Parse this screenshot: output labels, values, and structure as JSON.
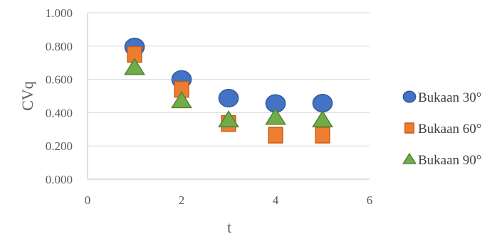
{
  "chart_data": {
    "type": "scatter",
    "title": "",
    "xlabel": "t",
    "ylabel": "CVq",
    "xlim": [
      0,
      6
    ],
    "ylim": [
      0,
      1
    ],
    "x_ticks": [
      "0",
      "2",
      "4",
      "6"
    ],
    "y_ticks": [
      "0.000",
      "0.200",
      "0.400",
      "0.600",
      "0.800",
      "1.000"
    ],
    "grid": true,
    "legend_position": "right",
    "series": [
      {
        "name": "Bukaan 30°",
        "marker": "circle",
        "color": "#4472C4",
        "points": [
          {
            "x": 1,
            "y": 0.795
          },
          {
            "x": 2,
            "y": 0.6
          },
          {
            "x": 3,
            "y": 0.487
          },
          {
            "x": 4,
            "y": 0.455
          },
          {
            "x": 5,
            "y": 0.457
          }
        ]
      },
      {
        "name": "Bukaan 60°",
        "marker": "square",
        "color": "#ED7D31",
        "points": [
          {
            "x": 1,
            "y": 0.75
          },
          {
            "x": 2,
            "y": 0.54
          },
          {
            "x": 3,
            "y": 0.335
          },
          {
            "x": 4,
            "y": 0.265
          },
          {
            "x": 5,
            "y": 0.265
          }
        ]
      },
      {
        "name": "Bukaan 90°",
        "marker": "triangle",
        "color": "#70AD47",
        "points": [
          {
            "x": 1,
            "y": 0.67
          },
          {
            "x": 2,
            "y": 0.47
          },
          {
            "x": 3,
            "y": 0.355
          },
          {
            "x": 4,
            "y": 0.37
          },
          {
            "x": 5,
            "y": 0.355
          }
        ]
      }
    ]
  },
  "legend": {
    "items": [
      {
        "label": "Bukaan 30°",
        "marker": "circle",
        "color": "#4472C4"
      },
      {
        "label": " Bukaan 60°",
        "marker": "square",
        "color": "#ED7D31"
      },
      {
        "label": "Bukaan 90°",
        "marker": "triangle",
        "color": "#70AD47"
      }
    ]
  },
  "colors": {
    "grid": "#D9D9D9",
    "axis": "#BFBFBF",
    "text": "#595959"
  }
}
